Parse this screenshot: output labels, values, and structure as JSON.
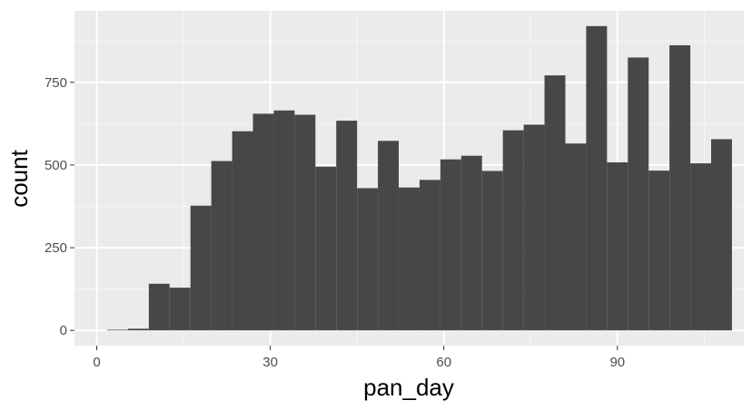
{
  "chart_data": {
    "type": "bar",
    "subtype": "histogram",
    "xlabel": "pan_day",
    "ylabel": "count",
    "xlim": [
      -3.85,
      111.85
    ],
    "ylim": [
      -46,
      966
    ],
    "x_ticks": [
      0,
      30,
      60,
      90
    ],
    "x_tick_labels": [
      "0",
      "30",
      "60",
      "90"
    ],
    "y_ticks": [
      0,
      250,
      500,
      750
    ],
    "y_tick_labels": [
      "0",
      "250",
      "500",
      "750"
    ],
    "grid": true,
    "bin_edges": [
      1.8,
      5.4,
      9.0,
      12.6,
      16.2,
      19.8,
      23.4,
      27.0,
      30.6,
      34.2,
      37.8,
      41.4,
      45.0,
      48.6,
      52.2,
      55.8,
      59.4,
      63.0,
      66.6,
      70.2,
      73.8,
      77.4,
      81.0,
      84.6,
      88.2,
      91.8,
      95.4,
      99.0,
      102.6,
      106.2
    ],
    "values": [
      2,
      5,
      141,
      129,
      377,
      512,
      602,
      655,
      665,
      652,
      495,
      634,
      430,
      573,
      432,
      455,
      517,
      528,
      482,
      605,
      622,
      771,
      565,
      920,
      508,
      825,
      483,
      862,
      505,
      578
    ],
    "colors": {
      "bar": "#474747",
      "panel": "#ebebeb",
      "grid_major": "#ffffff",
      "grid_minor": "#f5f5f5",
      "tick": "#333333"
    }
  }
}
